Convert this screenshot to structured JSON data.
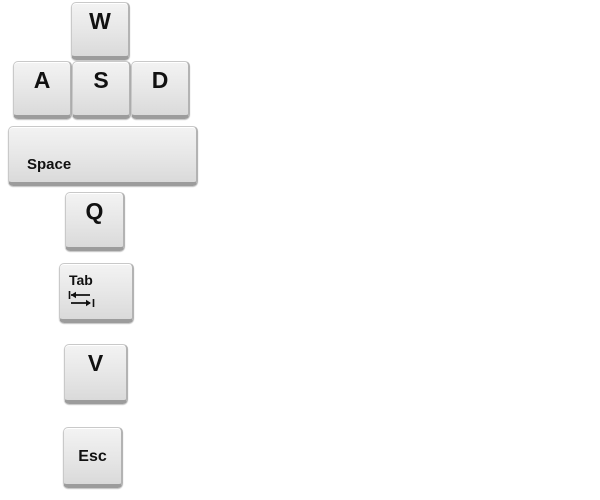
{
  "keys": {
    "w": {
      "label": "W"
    },
    "a": {
      "label": "A"
    },
    "s": {
      "label": "S"
    },
    "d": {
      "label": "D"
    },
    "space": {
      "label": "Space"
    },
    "q": {
      "label": "Q"
    },
    "tab": {
      "label": "Tab",
      "icon": "tab-arrows-icon"
    },
    "v": {
      "label": "V"
    },
    "esc": {
      "label": "Esc"
    }
  },
  "colors": {
    "key_face": "#e6e6e6",
    "key_text": "#111111",
    "background": "#ffffff"
  }
}
